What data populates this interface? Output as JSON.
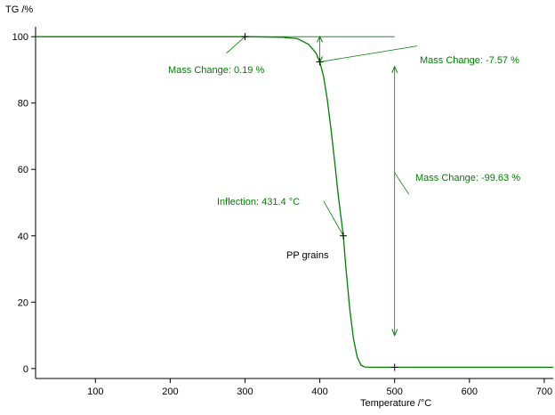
{
  "chart_data": {
    "type": "line",
    "ylabel": "TG /%",
    "xlabel": "Temperature /°C",
    "xlim": [
      20,
      712
    ],
    "ylim": [
      -3,
      103
    ],
    "x_ticks": [
      100,
      200,
      300,
      400,
      500,
      600,
      700
    ],
    "y_ticks": [
      0,
      20,
      40,
      60,
      80,
      100
    ],
    "grid": false,
    "series": [
      {
        "name": "PP grains",
        "color": "#007f00",
        "x": [
          20,
          100,
          200,
          300,
          350,
          370,
          385,
          395,
          400,
          405,
          410,
          415,
          420,
          425,
          431.4,
          435,
          440,
          445,
          450,
          455,
          460,
          470,
          500,
          600,
          712
        ],
        "y": [
          100,
          100,
          100,
          100,
          99.81,
          99.4,
          97.7,
          95,
          92.4,
          88,
          81,
          72,
          62,
          51.5,
          40,
          30,
          18,
          9,
          3.5,
          1.0,
          0.45,
          0.37,
          0.37,
          0.37,
          0.37
        ]
      }
    ],
    "annotations": {
      "mass_change_1": "Mass Change: 0.19 %",
      "mass_change_2": "Mass Change: -7.57 %",
      "mass_change_3": "Mass Change: -99.63 %",
      "inflection": "Inflection: 431.4 °C",
      "curve_label": "PP grains"
    },
    "markers": [
      {
        "x": 300,
        "y": 100
      },
      {
        "x": 400,
        "y": 92.4
      },
      {
        "x": 431.4,
        "y": 40
      },
      {
        "x": 500,
        "y": 0.37
      }
    ],
    "colors": {
      "curve": "#007f00",
      "axis": "#000000",
      "annotation": "#007f00"
    }
  }
}
